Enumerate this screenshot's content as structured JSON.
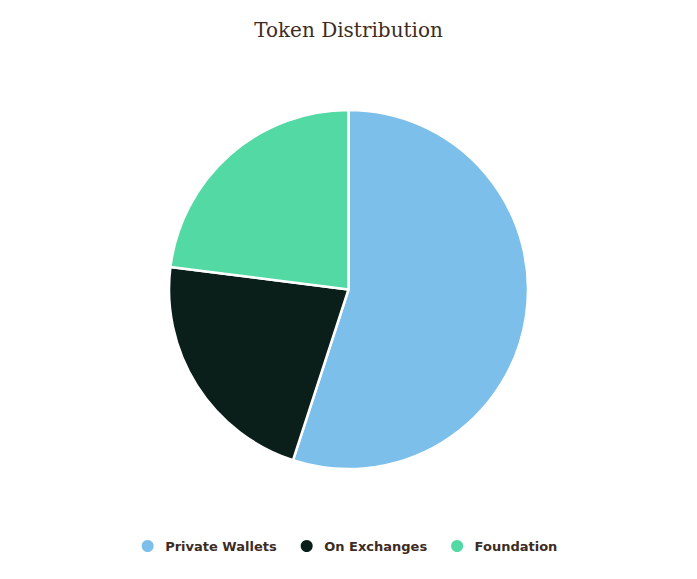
{
  "chart_data": {
    "type": "pie",
    "title": "Token Distribution",
    "categories": [
      "Private Wallets",
      "On Exchanges",
      "Foundation"
    ],
    "values": [
      55,
      22,
      23
    ],
    "colors": [
      "#7bbfea",
      "#0a1f1a",
      "#52d9a4"
    ],
    "legend": "bottom"
  }
}
